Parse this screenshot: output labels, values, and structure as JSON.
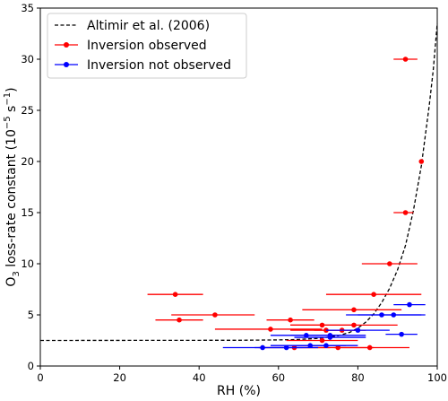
{
  "chart_data": {
    "type": "scatter",
    "xlabel": "RH (%)",
    "ylabel_main": "O",
    "ylabel_sub": "3",
    "ylabel_rest": " loss-rate constant (10",
    "ylabel_sup": "−5",
    "ylabel_unit": " s",
    "ylabel_sup2": "−1",
    "ylabel_close": ")",
    "xlim": [
      0,
      100
    ],
    "ylim": [
      0,
      35
    ],
    "xticks": [
      0,
      20,
      40,
      60,
      80,
      100
    ],
    "yticks": [
      0,
      5,
      10,
      15,
      20,
      25,
      30,
      35
    ],
    "legend_position": "top-left",
    "grid": false,
    "colors": {
      "observed": "#ff0000",
      "not_observed": "#0000ff",
      "fit": "#000000"
    },
    "fit_curve": {
      "name": "Altimir et al. (2006)",
      "style": "dashed",
      "points": [
        [
          0,
          2.5
        ],
        [
          50,
          2.52
        ],
        [
          60,
          2.55
        ],
        [
          65,
          2.6
        ],
        [
          70,
          2.7
        ],
        [
          75,
          2.95
        ],
        [
          78,
          3.3
        ],
        [
          80,
          3.7
        ],
        [
          82,
          4.3
        ],
        [
          84,
          5.1
        ],
        [
          86,
          6.2
        ],
        [
          88,
          7.6
        ],
        [
          90,
          9.4
        ],
        [
          92,
          11.8
        ],
        [
          94,
          15.2
        ],
        [
          96,
          19.6
        ],
        [
          98,
          25.5
        ],
        [
          99,
          29.0
        ],
        [
          100,
          33.5
        ]
      ]
    },
    "series": [
      {
        "name": "Inversion observed",
        "color": "#ff0000",
        "points": [
          {
            "x": 92,
            "y": 30,
            "xmin": 89,
            "xmax": 95
          },
          {
            "x": 96,
            "y": 20,
            "xmin": 96,
            "xmax": 96
          },
          {
            "x": 92,
            "y": 15,
            "xmin": 89,
            "xmax": 94
          },
          {
            "x": 88,
            "y": 10,
            "xmin": 81,
            "xmax": 95
          },
          {
            "x": 34,
            "y": 7,
            "xmin": 27,
            "xmax": 41
          },
          {
            "x": 84,
            "y": 7,
            "xmin": 72,
            "xmax": 96
          },
          {
            "x": 44,
            "y": 5,
            "xmin": 33,
            "xmax": 54
          },
          {
            "x": 79,
            "y": 5.5,
            "xmin": 66,
            "xmax": 91
          },
          {
            "x": 35,
            "y": 4.5,
            "xmin": 29,
            "xmax": 41
          },
          {
            "x": 63,
            "y": 4.5,
            "xmin": 57,
            "xmax": 69
          },
          {
            "x": 71,
            "y": 4,
            "xmin": 63,
            "xmax": 79
          },
          {
            "x": 79,
            "y": 4,
            "xmin": 63,
            "xmax": 90
          },
          {
            "x": 58,
            "y": 3.6,
            "xmin": 44,
            "xmax": 71
          },
          {
            "x": 72,
            "y": 3.5,
            "xmin": 63,
            "xmax": 80
          },
          {
            "x": 76,
            "y": 3.5,
            "xmin": 69,
            "xmax": 82
          },
          {
            "x": 71,
            "y": 2.5,
            "xmin": 62,
            "xmax": 80
          },
          {
            "x": 64,
            "y": 1.8,
            "xmin": 55,
            "xmax": 73
          },
          {
            "x": 75,
            "y": 1.8,
            "xmin": 66,
            "xmax": 84
          },
          {
            "x": 83,
            "y": 1.8,
            "xmin": 74,
            "xmax": 93
          }
        ]
      },
      {
        "name": "Inversion not observed",
        "color": "#0000ff",
        "points": [
          {
            "x": 93,
            "y": 6,
            "xmin": 89,
            "xmax": 97
          },
          {
            "x": 86,
            "y": 5,
            "xmin": 77,
            "xmax": 96
          },
          {
            "x": 89,
            "y": 5,
            "xmin": 80,
            "xmax": 97
          },
          {
            "x": 80,
            "y": 3.5,
            "xmin": 72,
            "xmax": 88
          },
          {
            "x": 67,
            "y": 3,
            "xmin": 58,
            "xmax": 75
          },
          {
            "x": 73,
            "y": 3,
            "xmin": 63,
            "xmax": 82
          },
          {
            "x": 73,
            "y": 2.8,
            "xmin": 64,
            "xmax": 82
          },
          {
            "x": 91,
            "y": 3.1,
            "xmin": 87,
            "xmax": 95
          },
          {
            "x": 68,
            "y": 2,
            "xmin": 58,
            "xmax": 77
          },
          {
            "x": 72,
            "y": 2,
            "xmin": 64,
            "xmax": 80
          },
          {
            "x": 56,
            "y": 1.8,
            "xmin": 46,
            "xmax": 66
          },
          {
            "x": 62,
            "y": 1.8,
            "xmin": 54,
            "xmax": 70
          }
        ]
      }
    ]
  }
}
